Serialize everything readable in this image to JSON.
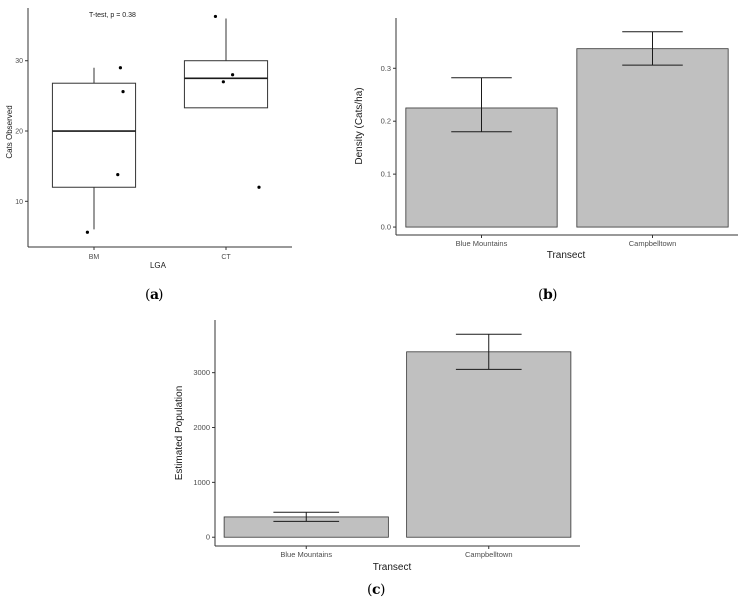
{
  "panel_labels": {
    "a": "a",
    "b": "b",
    "c": "c"
  },
  "chart_data": [
    {
      "type": "box",
      "panel": "a",
      "xlabel": "LGA",
      "ylabel": "Cats Observed",
      "annotation": "T-test, p = 0.38",
      "categories": [
        "BM",
        "CT"
      ],
      "ylim": [
        3.5,
        37.5
      ],
      "yticks": [
        10,
        20,
        30
      ],
      "boxes": [
        {
          "category": "BM",
          "q1": 12.0,
          "median": 20.0,
          "q3": 26.8,
          "whisker_low": 6.0,
          "whisker_high": 29.0
        },
        {
          "category": "CT",
          "q1": 23.3,
          "median": 27.5,
          "q3": 30.0,
          "whisker_low": 23.3,
          "whisker_high": 36.0
        }
      ],
      "points": [
        {
          "category": "BM",
          "jitter": -0.05,
          "y": 5.6
        },
        {
          "category": "BM",
          "jitter": 0.18,
          "y": 13.8
        },
        {
          "category": "BM",
          "jitter": 0.22,
          "y": 25.6
        },
        {
          "category": "BM",
          "jitter": 0.2,
          "y": 29.0
        },
        {
          "category": "CT",
          "jitter": -0.08,
          "y": 36.3
        },
        {
          "category": "CT",
          "jitter": 0.05,
          "y": 28.0
        },
        {
          "category": "CT",
          "jitter": -0.02,
          "y": 27.0
        },
        {
          "category": "CT",
          "jitter": 0.25,
          "y": 12.0
        }
      ],
      "grid": false
    },
    {
      "type": "bar",
      "panel": "b",
      "xlabel": "Transect",
      "ylabel": "Density (Cats/ha)",
      "categories": [
        "Blue Mountains",
        "Campbelltown"
      ],
      "values": [
        0.225,
        0.337
      ],
      "errors": [
        {
          "low": 0.18,
          "high": 0.282
        },
        {
          "low": 0.306,
          "high": 0.369
        }
      ],
      "ylim": [
        -0.015,
        0.395
      ],
      "yticks": [
        0.0,
        0.1,
        0.2,
        0.3
      ],
      "ytick_labels": [
        "0.0",
        "0.1",
        "0.2",
        "0.3"
      ],
      "bar_color": "#c0c0c0",
      "grid": false
    },
    {
      "type": "bar",
      "panel": "c",
      "xlabel": "Transect",
      "ylabel": "Estimated Population",
      "categories": [
        "Blue Mountains",
        "Campbelltown"
      ],
      "values": [
        370,
        3380
      ],
      "errors": [
        {
          "low": 290,
          "high": 455
        },
        {
          "low": 3060,
          "high": 3700
        }
      ],
      "ylim": [
        -160,
        3960
      ],
      "yticks": [
        0,
        1000,
        2000,
        3000
      ],
      "ytick_labels": [
        "0",
        "1000",
        "2000",
        "3000"
      ],
      "bar_color": "#c0c0c0",
      "grid": false
    }
  ]
}
